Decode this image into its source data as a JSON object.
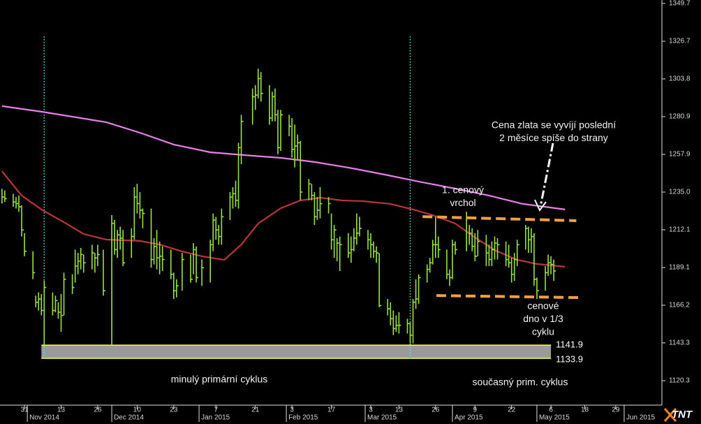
{
  "chart_data": {
    "type": "ohlc",
    "bar_color": "#9be33c",
    "xlim": [
      -0.7,
      234.4
    ],
    "ylim": [
      1106.3,
      1351.8
    ],
    "yticks": [
      1120.3,
      1143.3,
      1166.2,
      1189.1,
      1212.1,
      {
        "value": 1235,
        "label": "1235.0"
      },
      1257.9,
      1280.9,
      1303.8,
      1326.7,
      1349.7
    ],
    "xticks": [
      {
        "value": 8,
        "label": "31"
      },
      {
        "value": 21,
        "label": "13"
      },
      {
        "value": 34,
        "label": "26"
      },
      {
        "value": 48,
        "label": "10"
      },
      {
        "value": 61,
        "label": "23"
      },
      {
        "value": 76,
        "label": "7"
      },
      {
        "value": 90,
        "label": "21"
      },
      {
        "value": 103,
        "label": "3"
      },
      {
        "value": 117,
        "label": "17"
      },
      {
        "value": 131,
        "label": "3"
      },
      {
        "value": 141,
        "label": "13"
      },
      {
        "value": 154,
        "label": "26"
      },
      {
        "value": 168,
        "label": "9"
      },
      {
        "value": 181,
        "label": "22"
      },
      {
        "value": 195,
        "label": "6"
      },
      {
        "value": 207,
        "label": "18"
      },
      {
        "value": 218,
        "label": "29"
      }
    ],
    "month_ticks": [
      {
        "value": 9,
        "label": "Nov 2014"
      },
      {
        "value": 39,
        "label": "Dec 2014"
      },
      {
        "value": 70,
        "label": "Jan 2015"
      },
      {
        "value": 101,
        "label": "Feb 2015"
      },
      {
        "value": 129,
        "label": "Mar 2015"
      },
      {
        "value": 160,
        "label": "Apr 2015"
      },
      {
        "value": 190,
        "label": "May 2015"
      },
      {
        "value": 221,
        "label": "Jun 2015"
      }
    ],
    "x": [
      0,
      1,
      4,
      5,
      6,
      7,
      8,
      11,
      12,
      13,
      14,
      15,
      18,
      19,
      20,
      21,
      22,
      25,
      26,
      27,
      28,
      29,
      32,
      33,
      34,
      36,
      39,
      40,
      41,
      42,
      43,
      46,
      47,
      48,
      49,
      50,
      53,
      54,
      55,
      56,
      57,
      60,
      61,
      62,
      64,
      67,
      68,
      69,
      71,
      74,
      75,
      76,
      77,
      78,
      81,
      82,
      83,
      84,
      85,
      89,
      90,
      91,
      92,
      95,
      96,
      97,
      98,
      99,
      102,
      103,
      104,
      105,
      106,
      109,
      110,
      111,
      112,
      113,
      116,
      117,
      118,
      119,
      120,
      123,
      124,
      125,
      126,
      127,
      130,
      131,
      132,
      133,
      134,
      137,
      138,
      139,
      140,
      141,
      144,
      145,
      146,
      147,
      148,
      151,
      152,
      153,
      154,
      155,
      158,
      159,
      160,
      161,
      165,
      166,
      167,
      168,
      169,
      172,
      173,
      174,
      175,
      176,
      179,
      180,
      181,
      182,
      183,
      186,
      187,
      188,
      189,
      190,
      193,
      194,
      195,
      196
    ],
    "high": [
      1237,
      1236,
      1234,
      1232,
      1233,
      1227,
      1210,
      1199,
      1172,
      1174,
      1173,
      1181,
      1174,
      1172,
      1168,
      1173,
      1186,
      1185,
      1200,
      1198,
      1201,
      1197,
      1203,
      1198,
      1203,
      1200,
      1221,
      1218,
      1212,
      1214,
      1212,
      1213,
      1238,
      1240,
      1235,
      1225,
      1225,
      1207,
      1212,
      1205,
      1202,
      1200,
      1186,
      1182,
      1198,
      1197,
      1204,
      1202,
      1194,
      1206,
      1222,
      1220,
      1215,
      1225,
      1235,
      1238,
      1242,
      1265,
      1282,
      1298,
      1300,
      1310,
      1308,
      1300,
      1296,
      1298,
      1285,
      1285,
      1282,
      1280,
      1276,
      1270,
      1266,
      1243,
      1240,
      1235,
      1232,
      1238,
      1232,
      1222,
      1215,
      1207,
      1208,
      1210,
      1208,
      1213,
      1222,
      1220,
      1212,
      1210,
      1205,
      1202,
      1198,
      1170,
      1168,
      1163,
      1160,
      1162,
      1158,
      1156,
      1170,
      1182,
      1185,
      1191,
      1195,
      1206,
      1220,
      1208,
      1200,
      1188,
      1206,
      1205,
      1223,
      1215,
      1213,
      1210,
      1212,
      1209,
      1203,
      1205,
      1208,
      1207,
      1205,
      1203,
      1195,
      1198,
      1206,
      1215,
      1214,
      1213,
      1210,
      1183,
      1190,
      1197,
      1196,
      1194
    ],
    "low": [
      1228,
      1229,
      1226,
      1225,
      1223,
      1208,
      1196,
      1182,
      1165,
      1163,
      1160,
      1141,
      1160,
      1162,
      1158,
      1150,
      1160,
      1173,
      1180,
      1185,
      1188,
      1186,
      1188,
      1186,
      1190,
      1172,
      1142,
      1197,
      1195,
      1200,
      1190,
      1195,
      1206,
      1222,
      1219,
      1213,
      1189,
      1191,
      1188,
      1185,
      1187,
      1182,
      1170,
      1171,
      1175,
      1180,
      1185,
      1180,
      1178,
      1180,
      1199,
      1206,
      1203,
      1203,
      1218,
      1225,
      1226,
      1225,
      1252,
      1276,
      1285,
      1292,
      1290,
      1276,
      1278,
      1278,
      1258,
      1260,
      1269,
      1256,
      1250,
      1255,
      1230,
      1230,
      1230,
      1215,
      1218,
      1219,
      1222,
      1200,
      1195,
      1193,
      1187,
      1195,
      1192,
      1199,
      1203,
      1208,
      1200,
      1195,
      1195,
      1192,
      1165,
      1160,
      1154,
      1148,
      1150,
      1149,
      1149,
      1143,
      1143,
      1164,
      1167,
      1180,
      1186,
      1191,
      1195,
      1195,
      1182,
      1178,
      1182,
      1197,
      1199,
      1203,
      1199,
      1193,
      1196,
      1190,
      1190,
      1190,
      1194,
      1194,
      1190,
      1189,
      1180,
      1181,
      1190,
      1200,
      1198,
      1198,
      1178,
      1170,
      1175,
      1184,
      1185,
      1181
    ],
    "close": [
      1232,
      1231,
      1229,
      1228,
      1226,
      1212,
      1199,
      1186,
      1168,
      1170,
      1163,
      1177,
      1163,
      1169,
      1162,
      1160,
      1182,
      1177,
      1190,
      1193,
      1197,
      1192,
      1198,
      1195,
      1197,
      1175,
      1216,
      1200,
      1209,
      1207,
      1192,
      1208,
      1232,
      1228,
      1224,
      1222,
      1194,
      1202,
      1195,
      1196,
      1194,
      1185,
      1175,
      1178,
      1194,
      1182,
      1200,
      1183,
      1189,
      1203,
      1218,
      1212,
      1208,
      1220,
      1232,
      1234,
      1230,
      1262,
      1278,
      1293,
      1294,
      1304,
      1295,
      1280,
      1293,
      1282,
      1262,
      1282,
      1275,
      1261,
      1263,
      1265,
      1235,
      1240,
      1233,
      1220,
      1224,
      1228,
      1228,
      1206,
      1212,
      1204,
      1203,
      1198,
      1200,
      1207,
      1210,
      1213,
      1206,
      1203,
      1199,
      1198,
      1166,
      1164,
      1158,
      1152,
      1154,
      1154,
      1155,
      1148,
      1168,
      1170,
      1183,
      1188,
      1192,
      1203,
      1203,
      1200,
      1185,
      1183,
      1203,
      1200,
      1219,
      1210,
      1202,
      1196,
      1205,
      1198,
      1194,
      1200,
      1204,
      1203,
      1194,
      1192,
      1185,
      1194,
      1203,
      1213,
      1206,
      1208,
      1182,
      1175,
      1186,
      1192,
      1191,
      1187
    ],
    "lines": [
      {
        "color": "#e87ee8",
        "x": [
          0,
          14,
          37,
          49,
          61,
          74,
          86,
          99,
          111,
          123,
          136,
          148,
          161,
          173,
          185,
          200
        ],
        "values": [
          1287.3,
          1283.9,
          1277.5,
          1271.1,
          1263.9,
          1259.2,
          1257.5,
          1255.8,
          1253.3,
          1249.9,
          1245.6,
          1241.4,
          1237.1,
          1232.9,
          1227.8,
          1224.4
        ]
      },
      {
        "color": "#b8363a",
        "x": [
          0,
          7,
          14,
          22,
          29,
          37,
          49,
          56,
          64,
          71,
          79,
          85,
          91,
          99,
          106,
          113,
          121,
          128,
          138,
          146,
          153,
          161,
          168,
          175,
          183,
          190,
          200
        ],
        "values": [
          1247.7,
          1232.9,
          1224.4,
          1216.7,
          1209.5,
          1206.1,
          1205.3,
          1203.1,
          1198.9,
          1196,
          1193.8,
          1203.1,
          1215.9,
          1225.2,
          1229.9,
          1231.6,
          1229.9,
          1229.5,
          1227.8,
          1224.4,
          1221,
          1215.9,
          1207.4,
          1199.7,
          1193.8,
          1191.3,
          1189.6
        ]
      }
    ],
    "cycle_lines": {
      "color": "#4ff0f0",
      "x": [
        15,
        145
      ]
    },
    "trend_lines": [
      {
        "color": "#f0a040",
        "x": [
          149.4,
          204
        ],
        "values": [
          1220.1,
          1217.6
        ]
      },
      {
        "color": "#f0a040",
        "x": [
          154.3,
          206.4
        ],
        "values": [
          1172.1,
          1170.8
        ]
      }
    ],
    "range_box": {
      "x": [
        14,
        195
      ],
      "values": [
        1141.9,
        1133.9
      ],
      "fill": "#9a9a9a",
      "edge": "#ffff40"
    },
    "annotations": [
      {
        "lines": [
          "Cena zlata se vyvíjí poslední",
          "2 měsíce spíše do strany"
        ]
      },
      {
        "lines": [
          "1. cenový",
          "vrchol"
        ]
      },
      {
        "lines": [
          "cenové",
          "dno v 1/3",
          "cyklu"
        ]
      },
      {
        "lines": [
          "minulý primární cyklus"
        ]
      },
      {
        "lines": [
          "současný prim. cyklus"
        ]
      }
    ],
    "logo": "TNT"
  }
}
